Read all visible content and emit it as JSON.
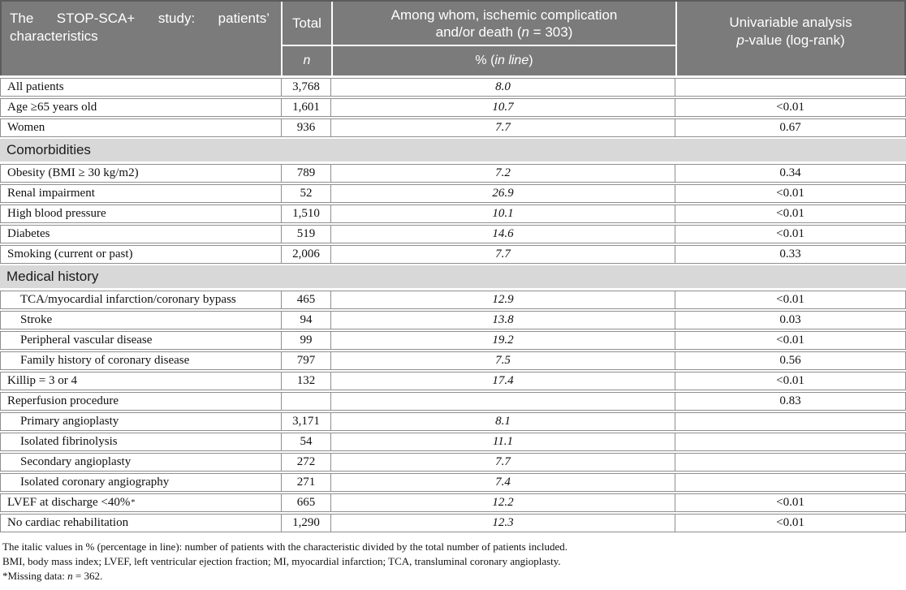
{
  "header": {
    "col1_title": "The STOP-SCA+ study: patients’ characteristics",
    "col2_top": "Total",
    "col2_bottom": "n",
    "col3_line1": "Among whom, ischemic complication",
    "col3_line2_pre": "and/or death (",
    "col3_line2_italic": "n",
    "col3_line2_post": " = 303)",
    "col3_sub_pre": "% (",
    "col3_sub_italic": "in line",
    "col3_sub_post": ")",
    "col4_line1": "Univariable analysis",
    "col4_line2_italic": "p",
    "col4_line2_post": "-value (log-rank)"
  },
  "table": {
    "rows": [
      {
        "type": "row",
        "label": "All patients",
        "n": "3,768",
        "pct": "8.0",
        "p": ""
      },
      {
        "type": "row",
        "label": "Age ≥65 years old",
        "n": "1,601",
        "pct": "10.7",
        "p": "<0.01"
      },
      {
        "type": "row",
        "label": "Women",
        "n": "936",
        "pct": "7.7",
        "p": "0.67"
      },
      {
        "type": "section",
        "label": "Comorbidities"
      },
      {
        "type": "row",
        "label": "Obesity (BMI ≥ 30 kg/m2)",
        "n": "789",
        "pct": "7.2",
        "p": "0.34"
      },
      {
        "type": "row",
        "label": "Renal impairment",
        "n": "52",
        "pct": "26.9",
        "p": "<0.01"
      },
      {
        "type": "row",
        "label": "High blood pressure",
        "n": "1,510",
        "pct": "10.1",
        "p": "<0.01"
      },
      {
        "type": "row",
        "label": "Diabetes",
        "n": "519",
        "pct": "14.6",
        "p": "<0.01"
      },
      {
        "type": "row",
        "label": "Smoking (current or past)",
        "n": "2,006",
        "pct": "7.7",
        "p": "0.33"
      },
      {
        "type": "section",
        "label": "Medical history"
      },
      {
        "type": "row",
        "label": "TCA/myocardial infarction/coronary bypass",
        "n": "465",
        "pct": "12.9",
        "p": "<0.01",
        "indent": true
      },
      {
        "type": "row",
        "label": "Stroke",
        "n": "94",
        "pct": "13.8",
        "p": "0.03",
        "indent": true
      },
      {
        "type": "row",
        "label": "Peripheral vascular disease",
        "n": "99",
        "pct": "19.2",
        "p": "<0.01",
        "indent": true
      },
      {
        "type": "row",
        "label": "Family history of coronary disease",
        "n": "797",
        "pct": "7.5",
        "p": "0.56",
        "indent": true
      },
      {
        "type": "row",
        "label": "Killip = 3 or 4",
        "n": "132",
        "pct": "17.4",
        "p": "<0.01"
      },
      {
        "type": "row",
        "label": "Reperfusion procedure",
        "n": "",
        "pct": "",
        "p": "0.83"
      },
      {
        "type": "row",
        "label": "Primary angioplasty",
        "n": "3,171",
        "pct": "8.1",
        "p": "",
        "indent": true
      },
      {
        "type": "row",
        "label": "Isolated fibrinolysis",
        "n": "54",
        "pct": "11.1",
        "p": "",
        "indent": true
      },
      {
        "type": "row",
        "label": "Secondary angioplasty",
        "n": "272",
        "pct": "7.7",
        "p": "",
        "indent": true
      },
      {
        "type": "row",
        "label": "Isolated coronary angiography",
        "n": "271",
        "pct": "7.4",
        "p": "",
        "indent": true
      },
      {
        "type": "row",
        "label": "LVEF at discharge <40%",
        "sup": "*",
        "n": "665",
        "pct": "12.2",
        "p": "<0.01"
      },
      {
        "type": "row",
        "label": "No cardiac rehabilitation",
        "n": "1,290",
        "pct": "12.3",
        "p": "<0.01"
      }
    ]
  },
  "footnotes": {
    "line1": "The italic values in % (percentage in line): number of patients with the characteristic divided by the total number of patients included.",
    "line2": "BMI, body mass index; LVEF, left ventricular ejection fraction; MI, myocardial infarction; TCA, transluminal coronary angioplasty.",
    "line3_pre": "*Missing data: ",
    "line3_italic": "n",
    "line3_post": " = 362."
  },
  "colors": {
    "header_bg": "#7b7b7b",
    "section_bg": "#d8d8d8",
    "border": "#8f8f8f",
    "header_text": "#ffffff"
  }
}
